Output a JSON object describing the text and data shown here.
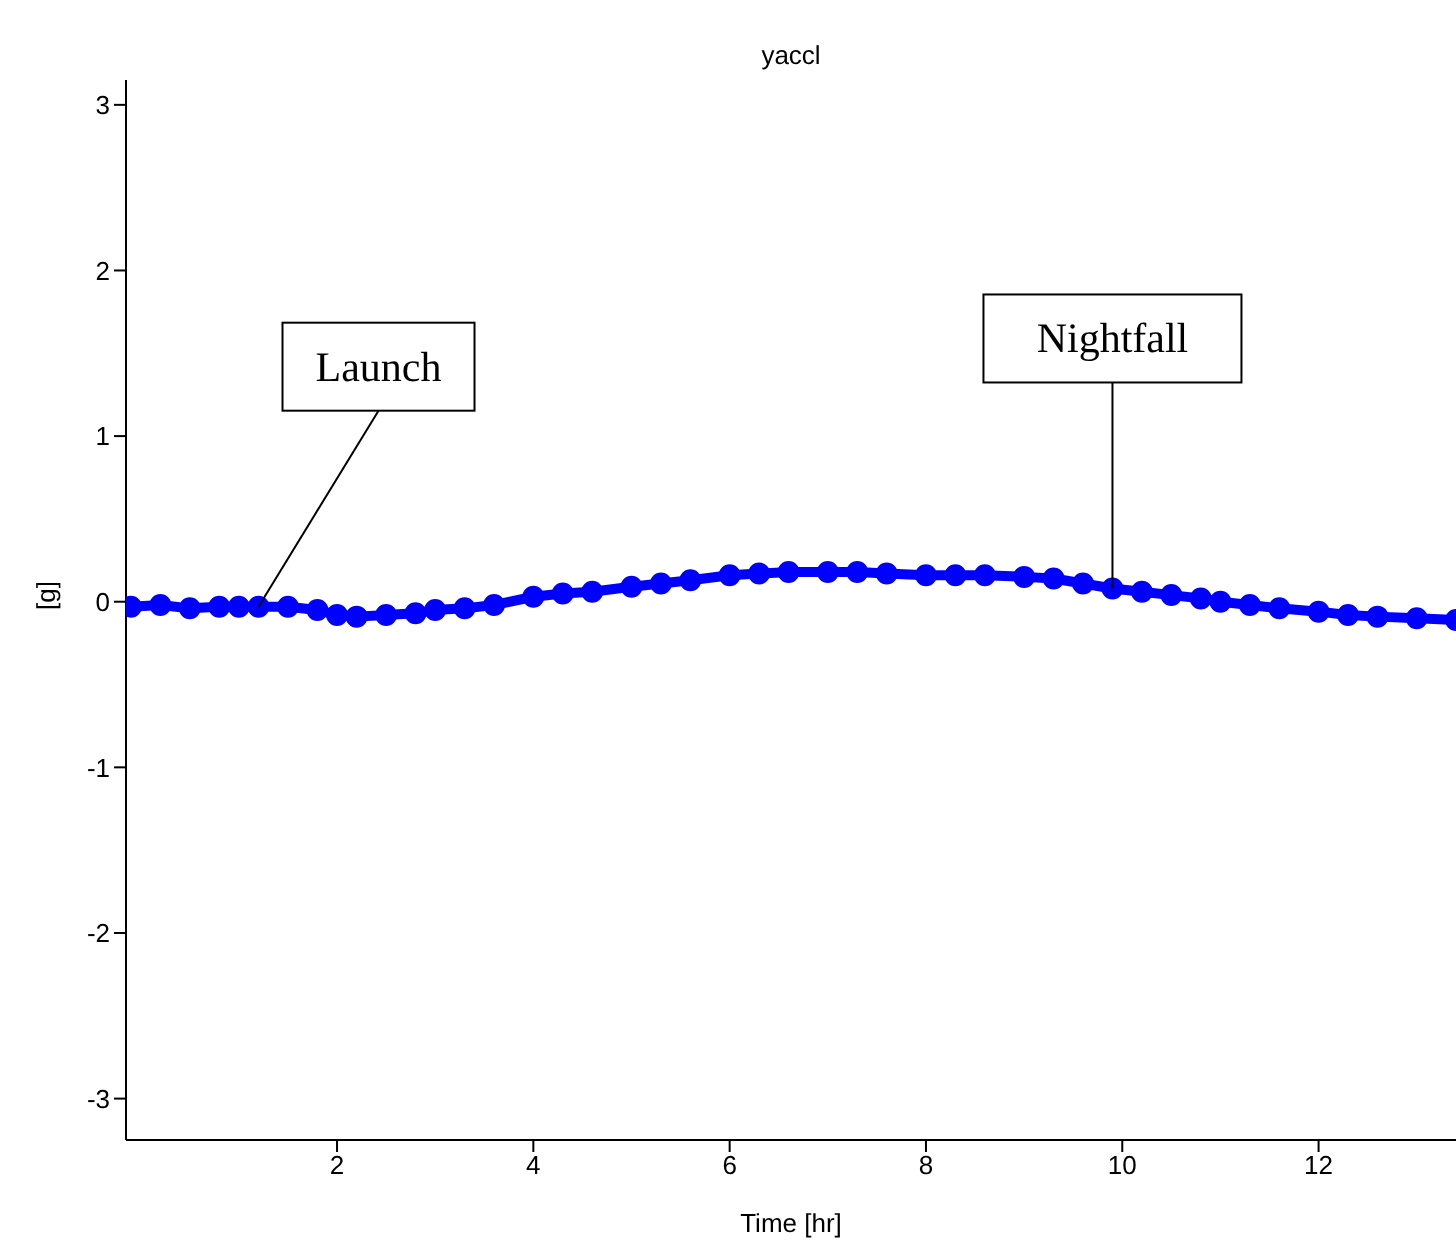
{
  "chart_data": {
    "type": "line",
    "title": "yaccl",
    "xlabel": "Time [hr]",
    "ylabel": "[g]",
    "marker": "circle",
    "grid": false,
    "x": [
      -0.1,
      0.2,
      0.5,
      0.8,
      1.0,
      1.2,
      1.5,
      1.8,
      2.0,
      2.2,
      2.5,
      2.8,
      3.0,
      3.3,
      3.6,
      4.0,
      4.3,
      4.6,
      5.0,
      5.3,
      5.6,
      6.0,
      6.3,
      6.6,
      7.0,
      7.3,
      7.6,
      8.0,
      8.3,
      8.6,
      9.0,
      9.3,
      9.6,
      9.9,
      10.2,
      10.5,
      10.8,
      11.0,
      11.3,
      11.6,
      12.0,
      12.3,
      12.6,
      13.0,
      13.4
    ],
    "series": [
      {
        "color": "#0000ff",
        "values": [
          -0.03,
          -0.02,
          -0.04,
          -0.03,
          -0.03,
          -0.03,
          -0.03,
          -0.05,
          -0.08,
          -0.09,
          -0.08,
          -0.07,
          -0.05,
          -0.04,
          -0.02,
          0.03,
          0.05,
          0.06,
          0.09,
          0.11,
          0.13,
          0.16,
          0.17,
          0.18,
          0.18,
          0.18,
          0.17,
          0.16,
          0.16,
          0.16,
          0.15,
          0.14,
          0.11,
          0.08,
          0.06,
          0.04,
          0.02,
          0.0,
          -0.02,
          -0.04,
          -0.06,
          -0.08,
          -0.09,
          -0.1,
          -0.11
        ]
      }
    ],
    "xlim": [
      -0.15,
      13.4
    ],
    "xticks": [
      2,
      4,
      6,
      8,
      10,
      12
    ],
    "ylim": [
      -3.25,
      3.15
    ],
    "yticks": [
      -3,
      -2,
      -1,
      0,
      1,
      2,
      3
    ],
    "annotations": [
      {
        "text": "Launch",
        "x": 1.2,
        "y": -0.03
      },
      {
        "text": "Nightfall",
        "x": 9.9,
        "y": 0.08
      }
    ]
  }
}
